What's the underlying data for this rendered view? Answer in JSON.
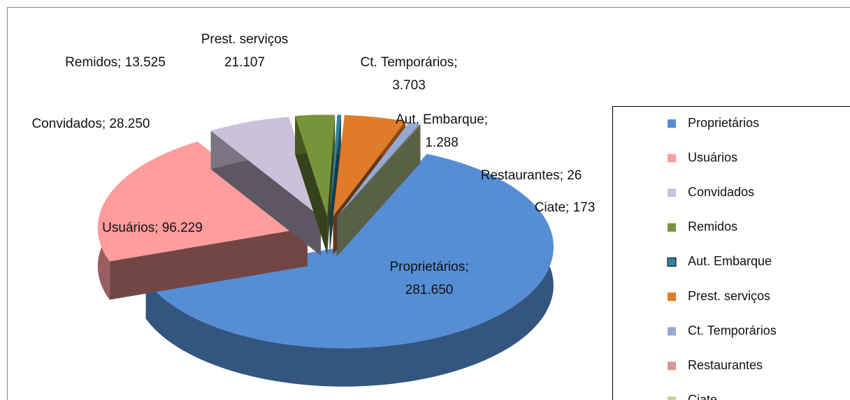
{
  "chart_data": {
    "type": "pie",
    "categories": [
      "Proprietários",
      "Usuários",
      "Convidados",
      "Remidos",
      "Aut. Embarque",
      "Prest. serviços",
      "Ct. Temporários",
      "Restaurantes",
      "Ciate"
    ],
    "values": [
      281650,
      96229,
      28250,
      13525,
      1288,
      21107,
      3703,
      26,
      173
    ],
    "value_labels": [
      [
        "Proprietários;",
        "281.650"
      ],
      [
        "Usuários; 96.229"
      ],
      [
        "Convidados; 28.250"
      ],
      [
        "Remidos; 13.525"
      ],
      [
        "Aut. Embarque;",
        "1.288"
      ],
      [
        "Prest. serviços",
        "21.107"
      ],
      [
        "Ct. Temporários;",
        "3.703"
      ],
      [
        "Restaurantes; 26"
      ],
      [
        "Ciate; 173"
      ]
    ],
    "colors": [
      "#558ed5",
      "#ff9c9c",
      "#ccc1da",
      "#77933c",
      "#31859c",
      "#e07b2a",
      "#95a9d3",
      "#d99694",
      "#c3d69b"
    ],
    "legend": "right"
  }
}
